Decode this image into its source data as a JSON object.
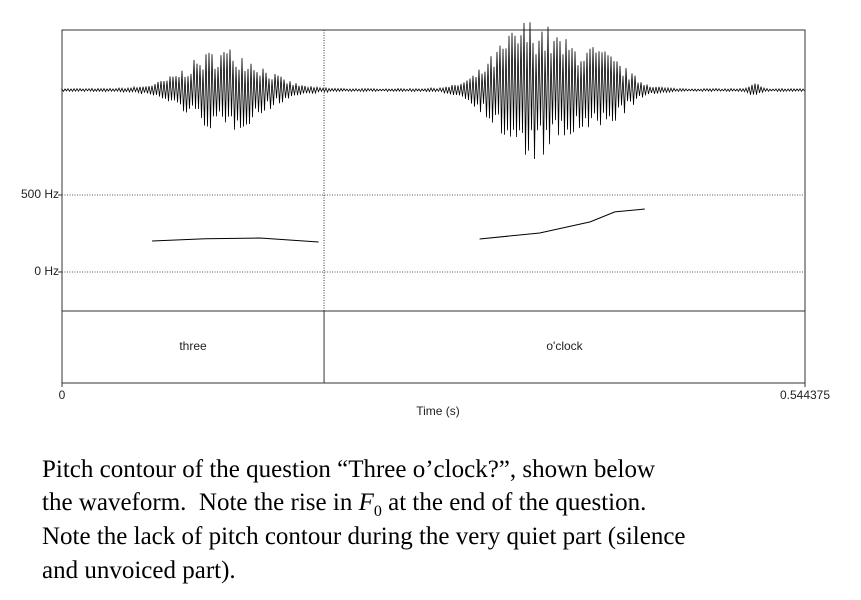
{
  "figure": {
    "xlim": [
      0,
      0.544375
    ],
    "xticks": [
      0,
      0.544375
    ],
    "xlabel": "Time (s)",
    "pitch_ylim": [
      0,
      500
    ],
    "pitch_yticks": [
      {
        "value": 500,
        "label": "500 Hz"
      },
      {
        "value": 0,
        "label": "0 Hz"
      }
    ],
    "boundaries": [
      0.192
    ],
    "intervals": [
      "three",
      "o'clock"
    ],
    "pitch": [
      {
        "x": [
          0.066,
          0.105,
          0.145,
          0.188
        ],
        "values": [
          201,
          216,
          221,
          195
        ]
      },
      {
        "x": [
          0.306,
          0.35,
          0.387,
          0.405,
          0.427
        ],
        "values": [
          214,
          253,
          325,
          390,
          409
        ]
      }
    ]
  },
  "caption": {
    "line1": "Pitch contour of the question “Three o’clock?”, shown below",
    "line2_before": "the waveform.  Note the rise in ",
    "f0_symbol": "F",
    "f0_subscript": "0",
    "line2_after": " at the end of the question.",
    "line3": "Note the lack of pitch contour during the very quiet part (silence",
    "line4": "and unvoiced part)."
  }
}
